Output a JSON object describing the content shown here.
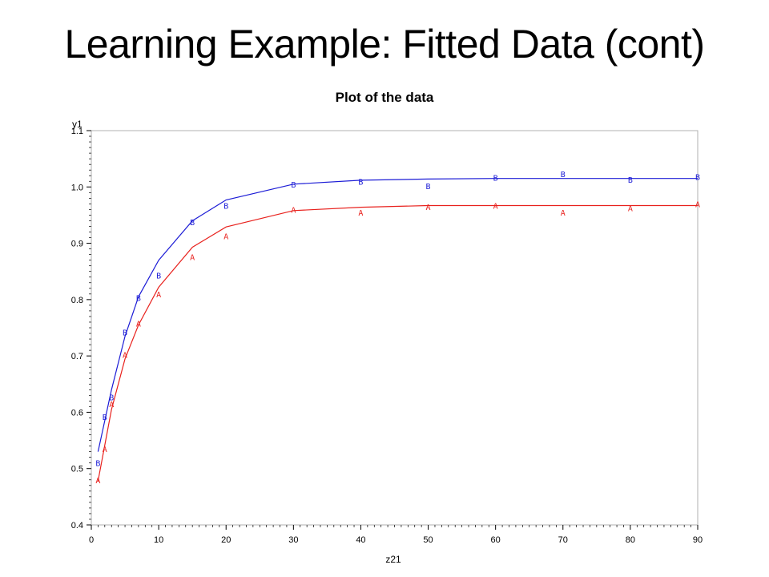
{
  "slide": {
    "title": "Learning Example: Fitted Data (cont)"
  },
  "chart_data": {
    "type": "scatter",
    "title": "Plot of the data",
    "xlabel": "z21",
    "ylabel": "y1",
    "xlim": [
      0,
      90
    ],
    "ylim": [
      0.4,
      1.1
    ],
    "xticks": [
      0,
      10,
      20,
      30,
      40,
      50,
      60,
      70,
      80,
      90
    ],
    "yticks": [
      0.4,
      0.5,
      0.6,
      0.7,
      0.8,
      0.9,
      1.0,
      1.1
    ],
    "ytick_labels": [
      "0.4",
      "0.5",
      "0.6",
      "0.7",
      "0.8",
      "0.9",
      "1.0",
      "1.1"
    ],
    "grid": false,
    "series": [
      {
        "symbol": "A",
        "color": "#e8211d",
        "points": [
          {
            "x": 1,
            "y": 0.48
          },
          {
            "x": 2,
            "y": 0.535
          },
          {
            "x": 3,
            "y": 0.615
          },
          {
            "x": 5,
            "y": 0.702
          },
          {
            "x": 7,
            "y": 0.758
          },
          {
            "x": 10,
            "y": 0.81
          },
          {
            "x": 15,
            "y": 0.876
          },
          {
            "x": 20,
            "y": 0.913
          },
          {
            "x": 30,
            "y": 0.96
          },
          {
            "x": 40,
            "y": 0.955
          },
          {
            "x": 50,
            "y": 0.965
          },
          {
            "x": 60,
            "y": 0.967
          },
          {
            "x": 70,
            "y": 0.955
          },
          {
            "x": 80,
            "y": 0.963
          },
          {
            "x": 90,
            "y": 0.97
          }
        ],
        "fit": [
          {
            "x": 1,
            "y": 0.478
          },
          {
            "x": 3,
            "y": 0.605
          },
          {
            "x": 5,
            "y": 0.695
          },
          {
            "x": 7,
            "y": 0.755
          },
          {
            "x": 10,
            "y": 0.822
          },
          {
            "x": 15,
            "y": 0.893
          },
          {
            "x": 20,
            "y": 0.929
          },
          {
            "x": 30,
            "y": 0.958
          },
          {
            "x": 40,
            "y": 0.964
          },
          {
            "x": 50,
            "y": 0.967
          },
          {
            "x": 60,
            "y": 0.967
          },
          {
            "x": 70,
            "y": 0.967
          },
          {
            "x": 80,
            "y": 0.967
          },
          {
            "x": 90,
            "y": 0.967
          }
        ]
      },
      {
        "symbol": "B",
        "color": "#1c1cd6",
        "points": [
          {
            "x": 1,
            "y": 0.51
          },
          {
            "x": 2,
            "y": 0.592
          },
          {
            "x": 3,
            "y": 0.627
          },
          {
            "x": 5,
            "y": 0.742
          },
          {
            "x": 7,
            "y": 0.803
          },
          {
            "x": 10,
            "y": 0.843
          },
          {
            "x": 15,
            "y": 0.938
          },
          {
            "x": 20,
            "y": 0.967
          },
          {
            "x": 30,
            "y": 1.005
          },
          {
            "x": 40,
            "y": 1.01
          },
          {
            "x": 50,
            "y": 1.002
          },
          {
            "x": 60,
            "y": 1.017
          },
          {
            "x": 70,
            "y": 1.023
          },
          {
            "x": 80,
            "y": 1.013
          },
          {
            "x": 90,
            "y": 1.018
          }
        ],
        "fit": [
          {
            "x": 1,
            "y": 0.53
          },
          {
            "x": 3,
            "y": 0.64
          },
          {
            "x": 5,
            "y": 0.735
          },
          {
            "x": 7,
            "y": 0.805
          },
          {
            "x": 10,
            "y": 0.87
          },
          {
            "x": 15,
            "y": 0.94
          },
          {
            "x": 20,
            "y": 0.977
          },
          {
            "x": 30,
            "y": 1.005
          },
          {
            "x": 40,
            "y": 1.012
          },
          {
            "x": 50,
            "y": 1.014
          },
          {
            "x": 60,
            "y": 1.015
          },
          {
            "x": 70,
            "y": 1.015
          },
          {
            "x": 80,
            "y": 1.015
          },
          {
            "x": 90,
            "y": 1.015
          }
        ]
      }
    ]
  }
}
